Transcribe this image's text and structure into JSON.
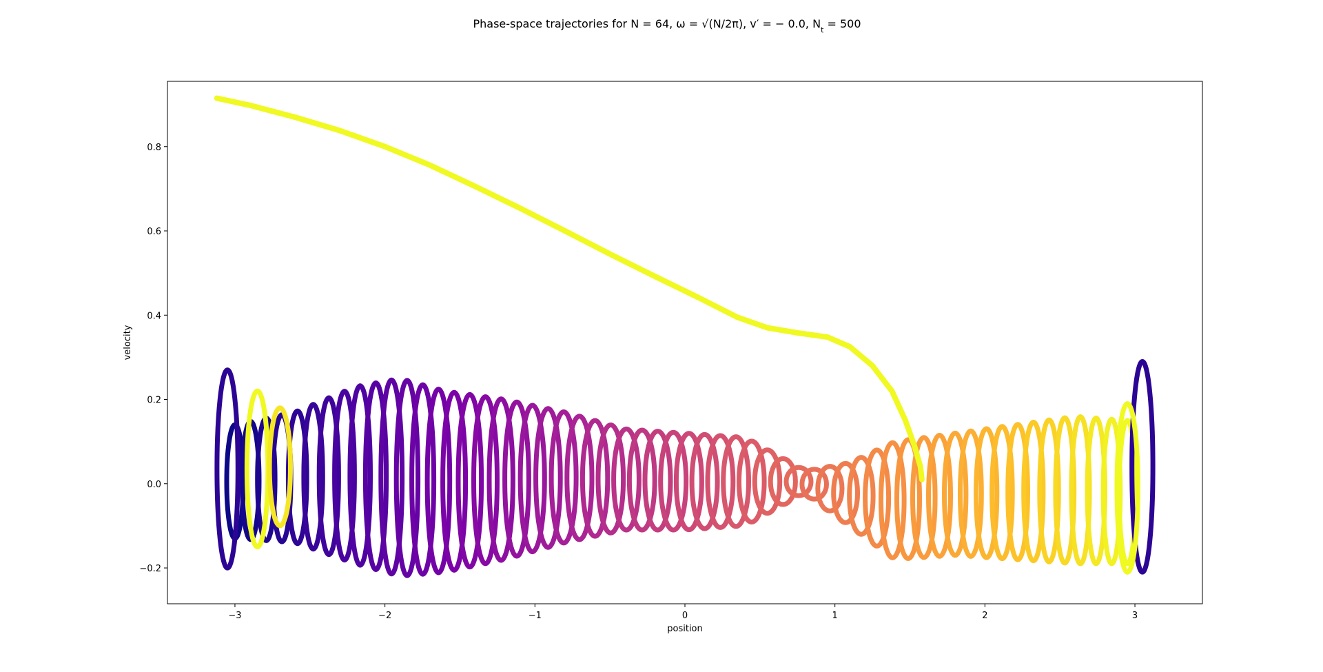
{
  "chart_data": {
    "type": "scatter",
    "title": "Phase-space trajectories for N = 64, ω = √(N/2π), v′ = − 0.0, N",
    "title_sub": "t",
    "title_end": " = 500",
    "xlabel": "position",
    "ylabel": "velocity",
    "xlim": [
      -3.45,
      3.45
    ],
    "ylim": [
      -0.285,
      0.955
    ],
    "xticks": [
      -3,
      -2,
      -1,
      0,
      1,
      2,
      3
    ],
    "xtick_labels": [
      "−3",
      "−2",
      "−1",
      "0",
      "1",
      "2",
      "3"
    ],
    "yticks": [
      -0.2,
      0.0,
      0.2,
      0.4,
      0.6,
      0.8
    ],
    "ytick_labels": [
      "−0.2",
      "0.0",
      "0.2",
      "0.4",
      "0.6",
      "0.8"
    ],
    "grid": false,
    "legend": "none",
    "colormap": "plasma",
    "particles": 64,
    "time_steps": 500,
    "highlight_trajectory": {
      "color": "#f0f921",
      "x": [
        -3.12,
        -2.9,
        -2.6,
        -2.3,
        -2.0,
        -1.7,
        -1.4,
        -1.1,
        -0.8,
        -0.5,
        -0.2,
        0.1,
        0.35,
        0.55,
        0.75,
        0.95,
        1.1,
        1.25,
        1.38,
        1.47,
        1.53,
        1.57,
        1.58
      ],
      "y": [
        0.915,
        0.898,
        0.87,
        0.838,
        0.8,
        0.756,
        0.706,
        0.654,
        0.6,
        0.545,
        0.492,
        0.44,
        0.395,
        0.37,
        0.358,
        0.348,
        0.325,
        0.28,
        0.22,
        0.15,
        0.09,
        0.04,
        0.01
      ]
    },
    "spiral_band": {
      "x_start": -3.0,
      "x_end": 2.95,
      "loops": 58,
      "envelope_x": [
        -3.0,
        -2.6,
        -2.2,
        -1.9,
        -1.6,
        -1.2,
        -0.8,
        -0.4,
        0.0,
        0.4,
        0.8,
        1.1,
        1.4,
        1.8,
        2.2,
        2.6,
        2.95
      ],
      "envelope_top": [
        0.14,
        0.17,
        0.23,
        0.25,
        0.22,
        0.2,
        0.17,
        0.13,
        0.12,
        0.11,
        0.03,
        0.05,
        0.1,
        0.12,
        0.14,
        0.16,
        0.15
      ],
      "envelope_bottom": [
        -0.13,
        -0.14,
        -0.19,
        -0.22,
        -0.21,
        -0.18,
        -0.14,
        -0.11,
        -0.11,
        -0.1,
        -0.02,
        -0.1,
        -0.18,
        -0.17,
        -0.18,
        -0.19,
        -0.19
      ]
    },
    "edge_loops": [
      {
        "side": "left",
        "x": -3.05,
        "ymin": -0.2,
        "ymax": 0.27,
        "color": "#2c0594"
      },
      {
        "side": "left",
        "x": -2.85,
        "ymin": -0.15,
        "ymax": 0.22,
        "color": "#f0f921"
      },
      {
        "side": "left",
        "x": -2.7,
        "ymin": -0.1,
        "ymax": 0.18,
        "color": "#f5e626"
      },
      {
        "side": "right",
        "x": 3.05,
        "ymin": -0.21,
        "ymax": 0.29,
        "color": "#2c0594"
      },
      {
        "side": "right",
        "x": 2.95,
        "ymin": -0.21,
        "ymax": 0.19,
        "color": "#f0f921"
      }
    ]
  }
}
